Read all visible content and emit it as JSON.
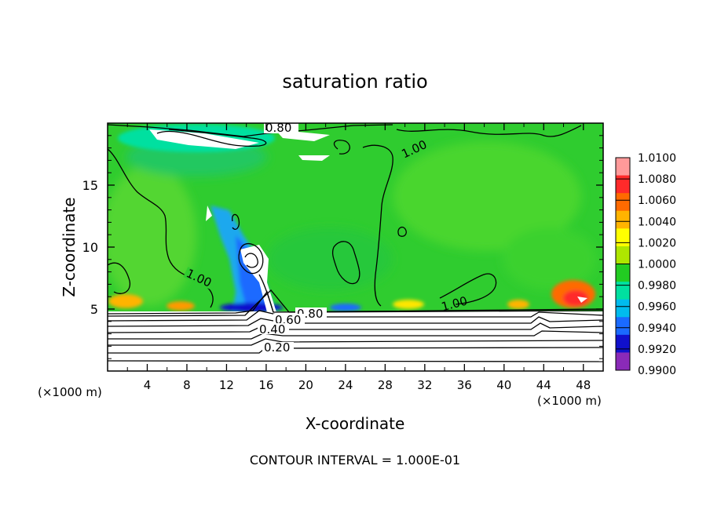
{
  "chart_data": {
    "type": "heatmap",
    "title": "saturation ratio",
    "xlabel": "X-coordinate",
    "ylabel": "Z-coordinate",
    "x_unit_left": "(×1000 m)",
    "x_unit_right": "(×1000 m)",
    "xlim": [
      0,
      50
    ],
    "ylim": [
      0,
      20
    ],
    "x_ticks": [
      4,
      8,
      12,
      16,
      20,
      24,
      28,
      32,
      36,
      40,
      44,
      48
    ],
    "y_ticks": [
      5,
      10,
      15
    ],
    "colorbar": {
      "labels": [
        "1.0100",
        "1.0080",
        "1.0060",
        "1.0040",
        "1.0020",
        "1.0000",
        "0.9980",
        "0.9960",
        "0.9940",
        "0.9920",
        "0.9900"
      ],
      "colors": [
        "#ff9a9a",
        "#ff2a2a",
        "#ff6a00",
        "#ffb400",
        "#ffff00",
        "#aee600",
        "#22cc22",
        "#00e0a0",
        "#00bbee",
        "#1a6aff",
        "#1010cc",
        "#8a2ab8"
      ]
    },
    "contour_labels": [
      {
        "text": "0.80",
        "x": 16.5,
        "z": 19.3
      },
      {
        "text": "1.00",
        "x": 30.0,
        "z": 17.7
      },
      {
        "text": "1.00",
        "x": 7.5,
        "z": 7.0
      },
      {
        "text": "1.00",
        "x": 34.0,
        "z": 5.5
      },
      {
        "text": "0.80",
        "x": 21.5,
        "z": 4.6
      },
      {
        "text": "0.60",
        "x": 19.5,
        "z": 4.2
      },
      {
        "text": "0.40",
        "x": 16.3,
        "z": 3.3
      },
      {
        "text": "0.20",
        "x": 17.0,
        "z": 2.0
      }
    ],
    "contour_interval_text": "CONTOUR INTERVAL = 1.000E-01"
  }
}
